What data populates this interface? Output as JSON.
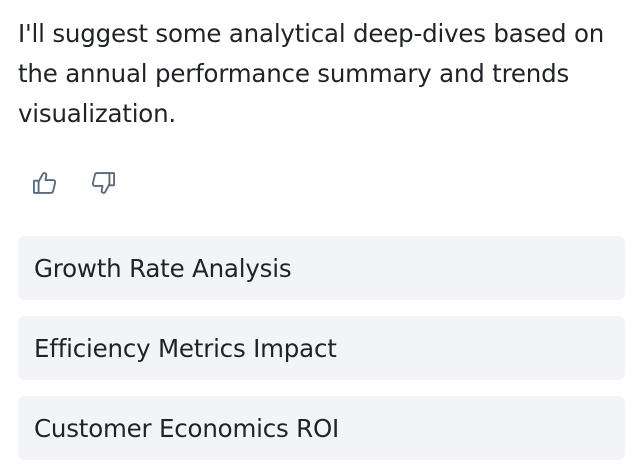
{
  "message": {
    "text": "I'll suggest some analytical deep-dives based on the annual performance summary and trends visualization."
  },
  "feedback": {
    "thumbs_up_icon": "thumbs-up-icon",
    "thumbs_down_icon": "thumbs-down-icon",
    "icon_color": "#5b6b7f"
  },
  "suggestions": [
    {
      "label": "Growth Rate Analysis"
    },
    {
      "label": "Efficiency Metrics Impact"
    },
    {
      "label": "Customer Economics ROI"
    }
  ],
  "colors": {
    "suggestion_bg": "#f2f4f8",
    "text": "#1f2328"
  }
}
